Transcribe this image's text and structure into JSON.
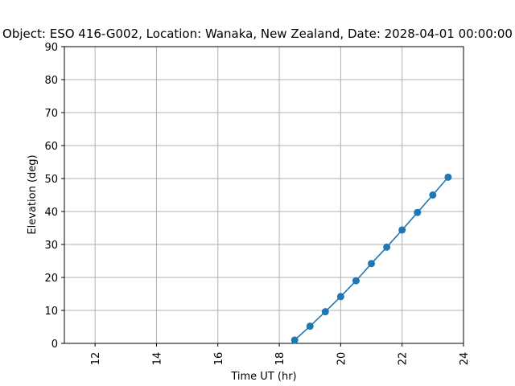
{
  "chart_data": {
    "type": "line",
    "title": "Object: ESO 416-G002,  Location: Wanaka, New Zealand, Date: 2028-04-01 00:00:00",
    "xlabel": "Time UT (hr)",
    "ylabel": "Elevation (deg)",
    "xlim": [
      11,
      24
    ],
    "ylim": [
      0,
      90
    ],
    "xticks": [
      12,
      14,
      16,
      18,
      20,
      22,
      24
    ],
    "yticks": [
      0,
      10,
      20,
      30,
      40,
      50,
      60,
      70,
      80,
      90
    ],
    "grid": true,
    "series": [
      {
        "color": "#1f77b4",
        "marker": "circle",
        "x": [
          18.5,
          19.0,
          19.5,
          20.0,
          20.5,
          21.0,
          21.5,
          22.0,
          22.5,
          23.0,
          23.5
        ],
        "y": [
          1.0,
          5.2,
          9.6,
          14.2,
          19.0,
          24.2,
          29.2,
          34.4,
          39.7,
          45.0,
          50.4
        ]
      }
    ]
  }
}
